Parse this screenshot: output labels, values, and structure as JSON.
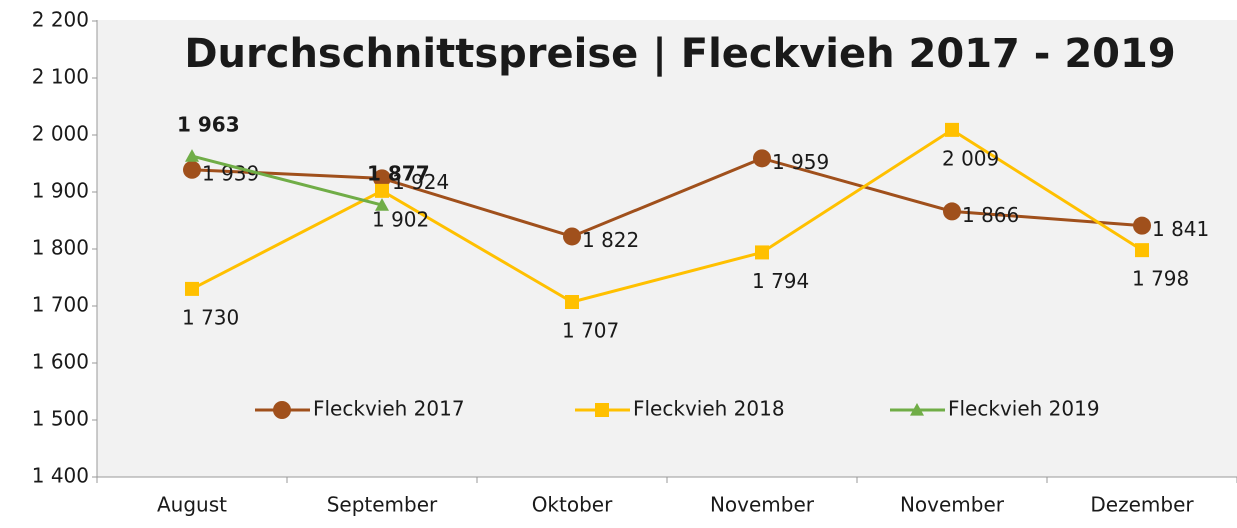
{
  "chart_data": {
    "type": "line",
    "title": "Durchschnittspreise | Fleckvieh 2017 - 2019",
    "categories": [
      "August",
      "September",
      "Oktober",
      "November",
      "November",
      "Dezember"
    ],
    "series": [
      {
        "name": "Fleckvieh 2017",
        "color": "#a0501c",
        "marker": "circle",
        "values": [
          1939,
          1924,
          1822,
          1959,
          1866,
          1841
        ],
        "value_labels": [
          "1 939",
          "1 924",
          "1 822",
          "1 959",
          "1 866",
          "1 841"
        ]
      },
      {
        "name": "Fleckvieh 2018",
        "color": "#ffc000",
        "marker": "square",
        "values": [
          1730,
          1902,
          1707,
          1794,
          2009,
          1798
        ],
        "value_labels": [
          "1 730",
          "1 902",
          "1 707",
          "1 794",
          "2 009",
          "1 798"
        ]
      },
      {
        "name": "Fleckvieh 2019",
        "color": "#70ad47",
        "marker": "triangle",
        "values": [
          1963,
          1877,
          null,
          null,
          null,
          null
        ],
        "value_labels": [
          "1 963",
          "1 877",
          null,
          null,
          null,
          null
        ]
      }
    ],
    "ylim": [
      1400,
      2200
    ],
    "yticks": [
      {
        "value": 1400,
        "label": "1 400"
      },
      {
        "value": 1500,
        "label": "1 500"
      },
      {
        "value": 1600,
        "label": "1 600"
      },
      {
        "value": 1700,
        "label": "1 700"
      },
      {
        "value": 1800,
        "label": "1 800"
      },
      {
        "value": 1900,
        "label": "1 900"
      },
      {
        "value": 2000,
        "label": "2 000"
      },
      {
        "value": 2100,
        "label": "2 100"
      },
      {
        "value": 2200,
        "label": "2 200"
      }
    ],
    "legend": "bottom"
  }
}
